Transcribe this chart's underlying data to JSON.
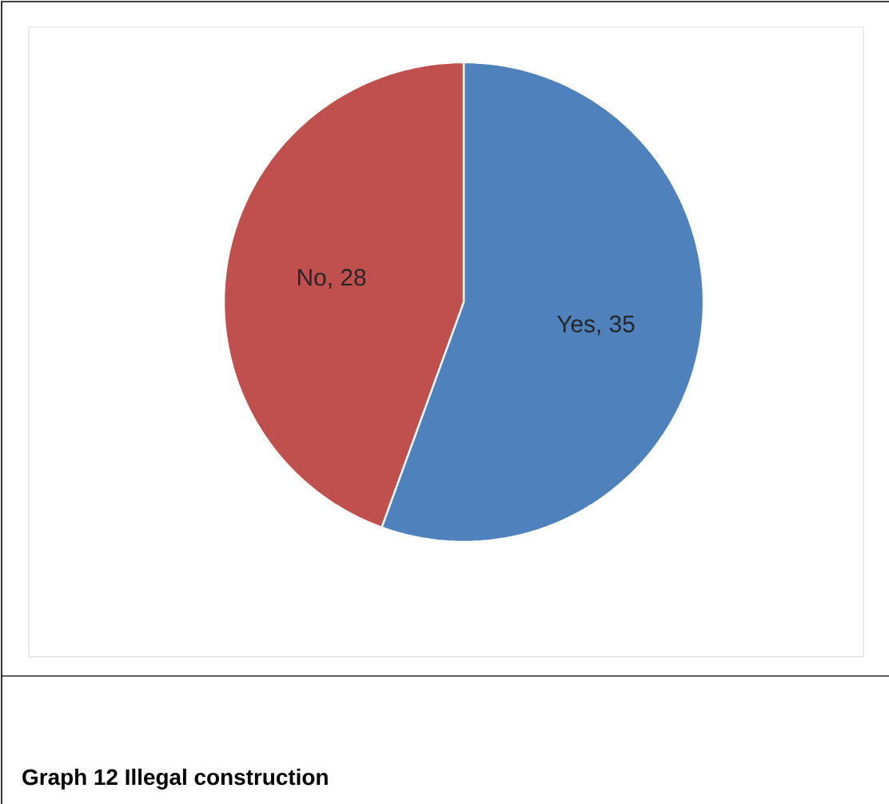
{
  "chart_data": {
    "type": "pie",
    "categories": [
      "Yes",
      "No"
    ],
    "values": [
      35,
      28
    ],
    "colors": [
      "#4f81bd",
      "#c0504d"
    ],
    "value_labels": [
      ", 35",
      ", 28"
    ],
    "annotations": [
      "**Graph 12 Illegal construction**"
    ]
  }
}
